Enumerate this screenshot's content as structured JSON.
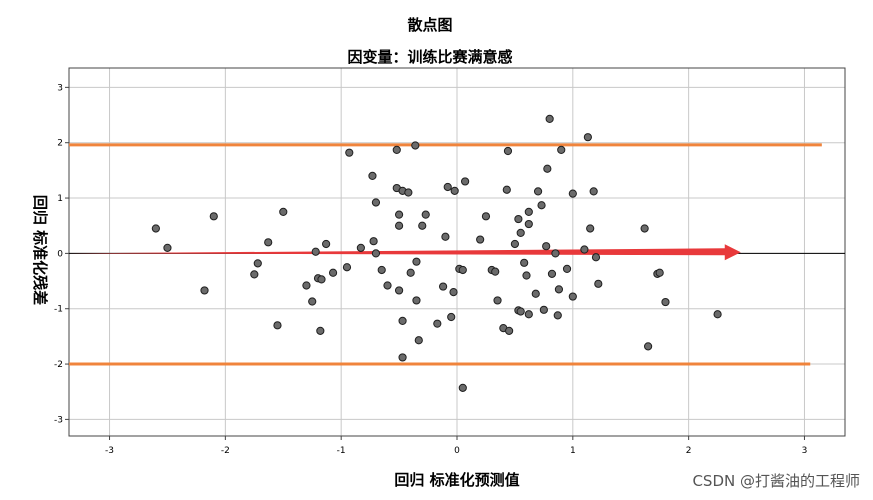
{
  "chart_data": {
    "type": "scatter",
    "title": "散点图",
    "subtitle": "因变量：训练比赛满意感",
    "xlabel": "回归 标准化预测值",
    "ylabel": "回归 标准化残差",
    "xlim": [
      -3.35,
      3.35
    ],
    "ylim": [
      -3.3,
      3.35
    ],
    "xticks": [
      -3,
      -2,
      -1,
      0,
      1,
      2,
      3
    ],
    "yticks": [
      -3,
      -2,
      -1,
      0,
      1,
      2,
      3
    ],
    "grid": true,
    "reference_lines": [
      {
        "kind": "horizontal",
        "y": 1.96,
        "x_range": [
          -3.35,
          3.15
        ],
        "color": "#f0843c"
      },
      {
        "kind": "horizontal",
        "y": -2.0,
        "x_range": [
          -3.35,
          3.05
        ],
        "color": "#f0843c"
      },
      {
        "kind": "horizontal",
        "y": 0,
        "x_range": [
          -3.35,
          3.35
        ],
        "color": "#000000"
      },
      {
        "kind": "arrow",
        "from": [
          -3.35,
          0
        ],
        "to": [
          2.45,
          0.02
        ],
        "color": "#e8393b"
      }
    ],
    "points": [
      [
        -2.6,
        0.45
      ],
      [
        -2.5,
        0.1
      ],
      [
        -2.18,
        -0.67
      ],
      [
        -2.1,
        0.67
      ],
      [
        -1.75,
        -0.38
      ],
      [
        -1.72,
        -0.18
      ],
      [
        -1.63,
        0.2
      ],
      [
        -1.55,
        -1.3
      ],
      [
        -1.5,
        0.75
      ],
      [
        -1.3,
        -0.58
      ],
      [
        -1.25,
        -0.87
      ],
      [
        -1.22,
        0.03
      ],
      [
        -1.2,
        -0.45
      ],
      [
        -1.18,
        -1.4
      ],
      [
        -1.17,
        -0.47
      ],
      [
        -1.13,
        0.17
      ],
      [
        -1.07,
        -0.35
      ],
      [
        -0.95,
        -0.25
      ],
      [
        -0.93,
        1.82
      ],
      [
        -0.83,
        0.1
      ],
      [
        -0.73,
        1.4
      ],
      [
        -0.72,
        0.22
      ],
      [
        -0.7,
        0.92
      ],
      [
        -0.7,
        0.0
      ],
      [
        -0.65,
        -0.3
      ],
      [
        -0.6,
        -0.58
      ],
      [
        -0.52,
        1.87
      ],
      [
        -0.52,
        1.18
      ],
      [
        -0.5,
        0.5
      ],
      [
        -0.5,
        0.7
      ],
      [
        -0.5,
        -0.67
      ],
      [
        -0.47,
        1.13
      ],
      [
        -0.47,
        -1.22
      ],
      [
        -0.47,
        -1.88
      ],
      [
        -0.42,
        1.1
      ],
      [
        -0.4,
        -0.35
      ],
      [
        -0.36,
        1.95
      ],
      [
        -0.35,
        -0.15
      ],
      [
        -0.35,
        -0.85
      ],
      [
        -0.33,
        -1.57
      ],
      [
        -0.3,
        0.5
      ],
      [
        -0.27,
        0.7
      ],
      [
        -0.17,
        -1.27
      ],
      [
        -0.12,
        -0.6
      ],
      [
        -0.1,
        0.3
      ],
      [
        -0.08,
        1.2
      ],
      [
        -0.05,
        -1.15
      ],
      [
        -0.03,
        -0.7
      ],
      [
        -0.02,
        1.13
      ],
      [
        0.02,
        -0.28
      ],
      [
        0.05,
        -0.3
      ],
      [
        0.05,
        -2.43
      ],
      [
        0.07,
        1.3
      ],
      [
        0.2,
        0.25
      ],
      [
        0.25,
        0.67
      ],
      [
        0.3,
        -0.3
      ],
      [
        0.33,
        -0.33
      ],
      [
        0.35,
        -0.85
      ],
      [
        0.4,
        -1.35
      ],
      [
        0.43,
        1.15
      ],
      [
        0.44,
        1.85
      ],
      [
        0.45,
        -1.4
      ],
      [
        0.5,
        0.17
      ],
      [
        0.53,
        -1.03
      ],
      [
        0.53,
        0.62
      ],
      [
        0.55,
        0.37
      ],
      [
        0.55,
        -1.05
      ],
      [
        0.58,
        -0.17
      ],
      [
        0.6,
        -0.4
      ],
      [
        0.62,
        0.53
      ],
      [
        0.62,
        0.75
      ],
      [
        0.62,
        -1.1
      ],
      [
        0.68,
        -0.73
      ],
      [
        0.7,
        1.12
      ],
      [
        0.73,
        0.87
      ],
      [
        0.75,
        -1.02
      ],
      [
        0.77,
        0.13
      ],
      [
        0.78,
        1.53
      ],
      [
        0.8,
        2.43
      ],
      [
        0.82,
        -0.37
      ],
      [
        0.85,
        0.0
      ],
      [
        0.87,
        -1.12
      ],
      [
        0.88,
        -0.65
      ],
      [
        0.9,
        1.87
      ],
      [
        0.95,
        -0.28
      ],
      [
        1.0,
        1.08
      ],
      [
        1.0,
        -0.78
      ],
      [
        1.1,
        0.07
      ],
      [
        1.13,
        2.1
      ],
      [
        1.15,
        0.45
      ],
      [
        1.18,
        1.12
      ],
      [
        1.2,
        -0.07
      ],
      [
        1.22,
        -0.55
      ],
      [
        1.62,
        0.45
      ],
      [
        1.65,
        -1.68
      ],
      [
        1.73,
        -0.37
      ],
      [
        1.75,
        -0.35
      ],
      [
        1.8,
        -0.88
      ],
      [
        2.25,
        -1.1
      ]
    ]
  },
  "watermark": "CSDN @打酱油的工程师"
}
